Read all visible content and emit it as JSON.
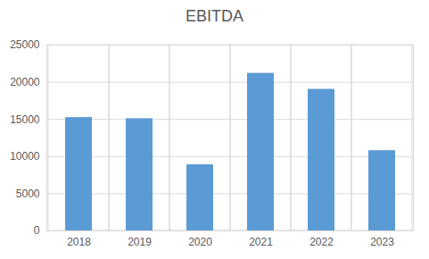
{
  "chart_data": {
    "type": "bar",
    "title": "EBITDA",
    "categories": [
      "2018",
      "2019",
      "2020",
      "2021",
      "2022",
      "2023"
    ],
    "values": [
      15250,
      15100,
      8900,
      21200,
      19050,
      10800
    ],
    "color": "#5b9bd5",
    "ylim": [
      0,
      25000
    ],
    "yticks": [
      0,
      5000,
      10000,
      15000,
      20000,
      25000
    ],
    "grid": true
  }
}
